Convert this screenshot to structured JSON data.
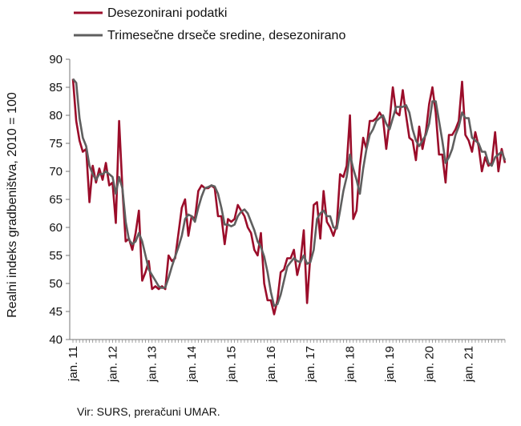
{
  "chart_data": {
    "type": "line",
    "ylabel": "Realni indeks gradbeništva, 2010 = 100",
    "ylim": [
      40,
      90
    ],
    "yticks": [
      40,
      45,
      50,
      55,
      60,
      65,
      70,
      75,
      80,
      85,
      90
    ],
    "x_start": "jan. 11",
    "x_tick_labels": [
      "jan. 11",
      "jan. 12",
      "jan. 13",
      "jan. 14",
      "jan. 15",
      "jan. 16",
      "jan. 17",
      "jan. 18",
      "jan. 19",
      "jan. 20",
      "jan. 21"
    ],
    "legend_position": "top-left",
    "grid": false,
    "series": [
      {
        "name": "Desezonirani podatki",
        "color": "#9b0d2a",
        "values": [
          86.5,
          79.0,
          75.5,
          73.5,
          74.0,
          64.5,
          71.0,
          68.0,
          70.5,
          68.5,
          71.5,
          67.5,
          68.0,
          60.8,
          79.0,
          67.0,
          57.5,
          58.0,
          56.0,
          59.0,
          63.0,
          50.5,
          52.0,
          54.0,
          49.0,
          49.5,
          49.0,
          49.5,
          49.0,
          55.0,
          54.0,
          54.5,
          59.0,
          63.5,
          65.0,
          58.5,
          62.0,
          61.5,
          66.5,
          67.5,
          67.0,
          67.0,
          67.5,
          67.0,
          62.0,
          62.0,
          57.0,
          61.5,
          61.0,
          61.5,
          64.0,
          63.0,
          62.0,
          60.0,
          59.0,
          56.0,
          55.0,
          59.0,
          50.0,
          47.0,
          47.0,
          44.5,
          47.0,
          52.0,
          52.5,
          54.5,
          54.5,
          56.0,
          51.5,
          54.0,
          59.5,
          46.5,
          55.0,
          64.0,
          64.5,
          58.0,
          66.5,
          61.0,
          60.0,
          58.5,
          60.5,
          69.5,
          69.0,
          71.0,
          80.0,
          61.5,
          63.0,
          71.0,
          76.0,
          74.0,
          79.0,
          79.0,
          79.5,
          80.5,
          79.5,
          74.0,
          79.0,
          85.0,
          80.5,
          80.0,
          84.5,
          80.0,
          76.0,
          75.5,
          72.0,
          78.0,
          74.0,
          77.0,
          82.0,
          85.0,
          80.5,
          73.0,
          73.0,
          68.0,
          76.5,
          76.5,
          77.5,
          79.0,
          86.0,
          76.5,
          75.5,
          73.5,
          77.0,
          74.5,
          70.0,
          72.5,
          71.0,
          71.5,
          77.0,
          70.0,
          74.0,
          71.5
        ]
      },
      {
        "name": "Trimesečne drseče sredine, desezonirano",
        "color": "#5f5f5f",
        "values": [
          86.5,
          85.8,
          79.5,
          76.0,
          74.5,
          71.0,
          69.5,
          68.5,
          69.5,
          69.5,
          70.0,
          69.5,
          69.0,
          66.0,
          69.0,
          67.0,
          61.0,
          57.8,
          57.0,
          57.5,
          59.0,
          57.5,
          55.0,
          52.5,
          51.5,
          50.5,
          49.5,
          49.2,
          49.3,
          51.0,
          53.0,
          54.8,
          56.5,
          58.5,
          61.5,
          62.3,
          62.0,
          61.0,
          63.5,
          65.5,
          67.0,
          67.2,
          67.5,
          67.3,
          66.0,
          63.5,
          60.5,
          60.5,
          60.2,
          60.5,
          62.0,
          62.8,
          63.2,
          62.5,
          61.0,
          59.5,
          57.5,
          56.5,
          54.8,
          52.0,
          48.5,
          46.0,
          46.3,
          48.0,
          50.5,
          53.0,
          53.8,
          54.5,
          54.0,
          53.8,
          55.0,
          53.5,
          53.8,
          56.0,
          61.5,
          62.5,
          63.0,
          62.0,
          62.0,
          60.0,
          59.8,
          63.0,
          66.5,
          69.0,
          73.0,
          70.5,
          68.5,
          66.0,
          70.5,
          74.0,
          76.5,
          77.5,
          79.0,
          79.5,
          80.0,
          78.5,
          77.5,
          79.5,
          81.5,
          81.5,
          81.5,
          81.8,
          80.5,
          77.5,
          75.5,
          74.5,
          75.5,
          76.5,
          78.5,
          82.5,
          82.5,
          79.0,
          75.5,
          71.5,
          72.5,
          74.0,
          76.5,
          78.0,
          80.5,
          79.5,
          79.5,
          76.0,
          75.5,
          75.0,
          73.5,
          73.5,
          71.5,
          71.0,
          72.5,
          73.0,
          73.5,
          72.0
        ]
      }
    ],
    "source": "Vir: SURS, preračuni UMAR."
  }
}
